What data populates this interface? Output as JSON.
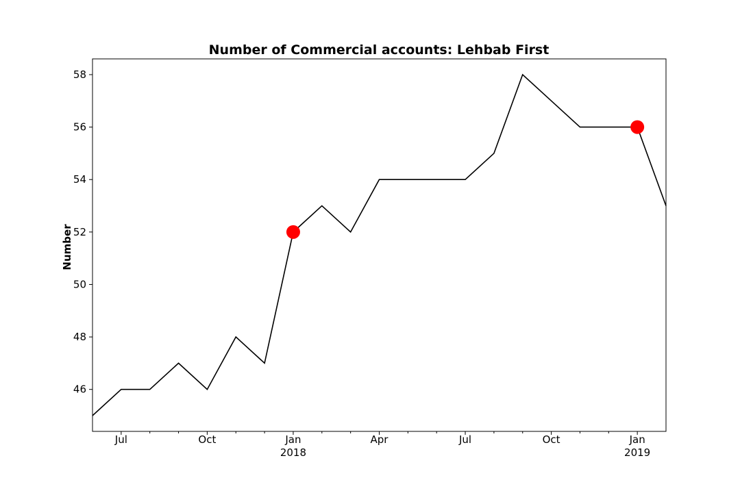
{
  "chart_data": {
    "type": "line",
    "title": "Number of Commercial accounts: Lehbab First",
    "xlabel": "",
    "ylabel": "Number",
    "x": [
      "2017-06",
      "2017-07",
      "2017-08",
      "2017-09",
      "2017-10",
      "2017-11",
      "2017-12",
      "2018-01",
      "2018-02",
      "2018-03",
      "2018-04",
      "2018-05",
      "2018-06",
      "2018-07",
      "2018-08",
      "2018-09",
      "2018-10",
      "2018-11",
      "2018-12",
      "2019-01",
      "2019-02"
    ],
    "series": [
      {
        "values": [
          45,
          46,
          46,
          47,
          46,
          48,
          47,
          52,
          53,
          52,
          54,
          54,
          54,
          54,
          55,
          58,
          57,
          56,
          56,
          56,
          53
        ],
        "color": "#000000"
      }
    ],
    "highlights": [
      {
        "x": "2018-01",
        "y": 52,
        "color": "#ff0000"
      },
      {
        "x": "2019-01",
        "y": 56,
        "color": "#ff0000"
      }
    ],
    "ylim": [
      44.4,
      58.6
    ],
    "xlim": [
      "2017-06",
      "2019-02"
    ],
    "y_ticks": [
      "46",
      "48",
      "50",
      "52",
      "54",
      "56",
      "58"
    ],
    "x_ticks": [
      {
        "x": "2017-07",
        "label": "Jul",
        "sublabel": ""
      },
      {
        "x": "2017-10",
        "label": "Oct",
        "sublabel": ""
      },
      {
        "x": "2018-01",
        "label": "Jan",
        "sublabel": "2018"
      },
      {
        "x": "2018-04",
        "label": "Apr",
        "sublabel": ""
      },
      {
        "x": "2018-07",
        "label": "Jul",
        "sublabel": ""
      },
      {
        "x": "2018-10",
        "label": "Oct",
        "sublabel": ""
      },
      {
        "x": "2019-01",
        "label": "Jan",
        "sublabel": "2019"
      }
    ],
    "x_minor_ticks": [
      "2017-08",
      "2017-09",
      "2017-11",
      "2017-12",
      "2018-02",
      "2018-03",
      "2018-05",
      "2018-06",
      "2018-08",
      "2018-09",
      "2018-11",
      "2018-12"
    ],
    "grid": false,
    "legend": "none"
  }
}
